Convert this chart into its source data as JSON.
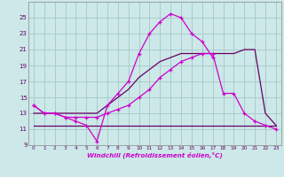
{
  "xlabel": "Windchill (Refroidissement éolien,°C)",
  "bg_color": "#cce8e8",
  "grid_color": "#aacccc",
  "line_color_bright": "#cc00cc",
  "line_color_dark": "#660066",
  "hours": [
    0,
    1,
    2,
    3,
    4,
    5,
    6,
    7,
    8,
    9,
    10,
    11,
    12,
    13,
    14,
    15,
    16,
    17,
    18,
    19,
    20,
    21,
    22,
    23
  ],
  "temp": [
    14.0,
    13.0,
    13.0,
    12.5,
    12.0,
    11.5,
    9.5,
    14.0,
    15.5,
    17.0,
    20.5,
    23.0,
    24.5,
    25.5,
    25.0,
    23.0,
    22.0,
    20.0,
    null,
    null,
    null,
    null,
    null,
    null
  ],
  "windchill": [
    14.0,
    13.0,
    13.0,
    12.5,
    12.5,
    12.5,
    12.5,
    13.0,
    13.5,
    14.0,
    15.0,
    16.0,
    17.5,
    18.5,
    19.5,
    20.0,
    20.5,
    20.5,
    15.5,
    15.5,
    13.0,
    12.0,
    11.5,
    11.0
  ],
  "tmin": [
    11.5,
    11.5,
    11.5,
    11.5,
    11.5,
    11.5,
    11.5,
    11.5,
    11.5,
    11.5,
    11.5,
    11.5,
    11.5,
    11.5,
    11.5,
    11.5,
    11.5,
    11.5,
    11.5,
    11.5,
    11.5,
    11.5,
    11.5,
    11.5
  ],
  "tmax": [
    13.0,
    13.0,
    13.0,
    13.0,
    13.0,
    13.0,
    13.0,
    14.0,
    15.0,
    16.0,
    17.5,
    18.5,
    19.5,
    20.0,
    20.5,
    20.5,
    20.5,
    20.5,
    20.5,
    20.5,
    21.0,
    21.0,
    13.0,
    11.5
  ],
  "ylim": [
    9,
    27
  ],
  "xlim": [
    -0.5,
    23.5
  ],
  "yticks": [
    9,
    11,
    13,
    15,
    17,
    19,
    21,
    23,
    25
  ],
  "xticks": [
    0,
    1,
    2,
    3,
    4,
    5,
    6,
    7,
    8,
    9,
    10,
    11,
    12,
    13,
    14,
    15,
    16,
    17,
    18,
    19,
    20,
    21,
    22,
    23
  ]
}
